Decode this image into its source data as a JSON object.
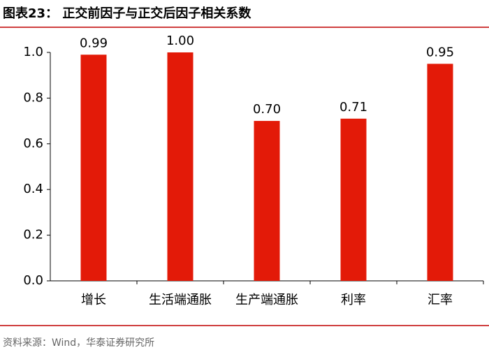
{
  "chart_data": {
    "type": "bar",
    "title": "图表23：  正交前因子与正交后因子相关系数",
    "source": "资料来源：Wind，华泰证券研究所",
    "categories": [
      "增长",
      "生活端通胀",
      "生产端通胀",
      "利率",
      "汇率"
    ],
    "values": [
      0.99,
      1.0,
      0.7,
      0.71,
      0.95
    ],
    "value_labels": [
      "0.99",
      "1.00",
      "0.70",
      "0.71",
      "0.95"
    ],
    "color": "#e31a08",
    "ylim": [
      0,
      1.0
    ],
    "yticks": [
      {
        "value": 0,
        "label": "0.0"
      },
      0.2,
      0.4,
      0.6,
      0.8,
      {
        "value": 1.0,
        "label": "1.0"
      }
    ],
    "grid": false
  }
}
